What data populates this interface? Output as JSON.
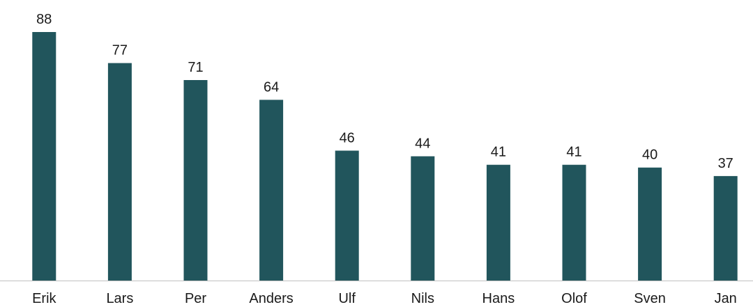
{
  "chart_data": {
    "type": "bar",
    "categories": [
      "Erik",
      "Lars",
      "Per",
      "Anders",
      "Ulf",
      "Nils",
      "Hans",
      "Olof",
      "Sven",
      "Jan"
    ],
    "values": [
      88,
      77,
      71,
      64,
      46,
      44,
      41,
      41,
      40,
      37
    ],
    "ylim": [
      0,
      88
    ],
    "grid": false,
    "legend": "none",
    "data_labels": true,
    "colors": {
      "bar": "#21555c",
      "axis": "#bfbfbf",
      "text": "#1a1a1a"
    }
  }
}
